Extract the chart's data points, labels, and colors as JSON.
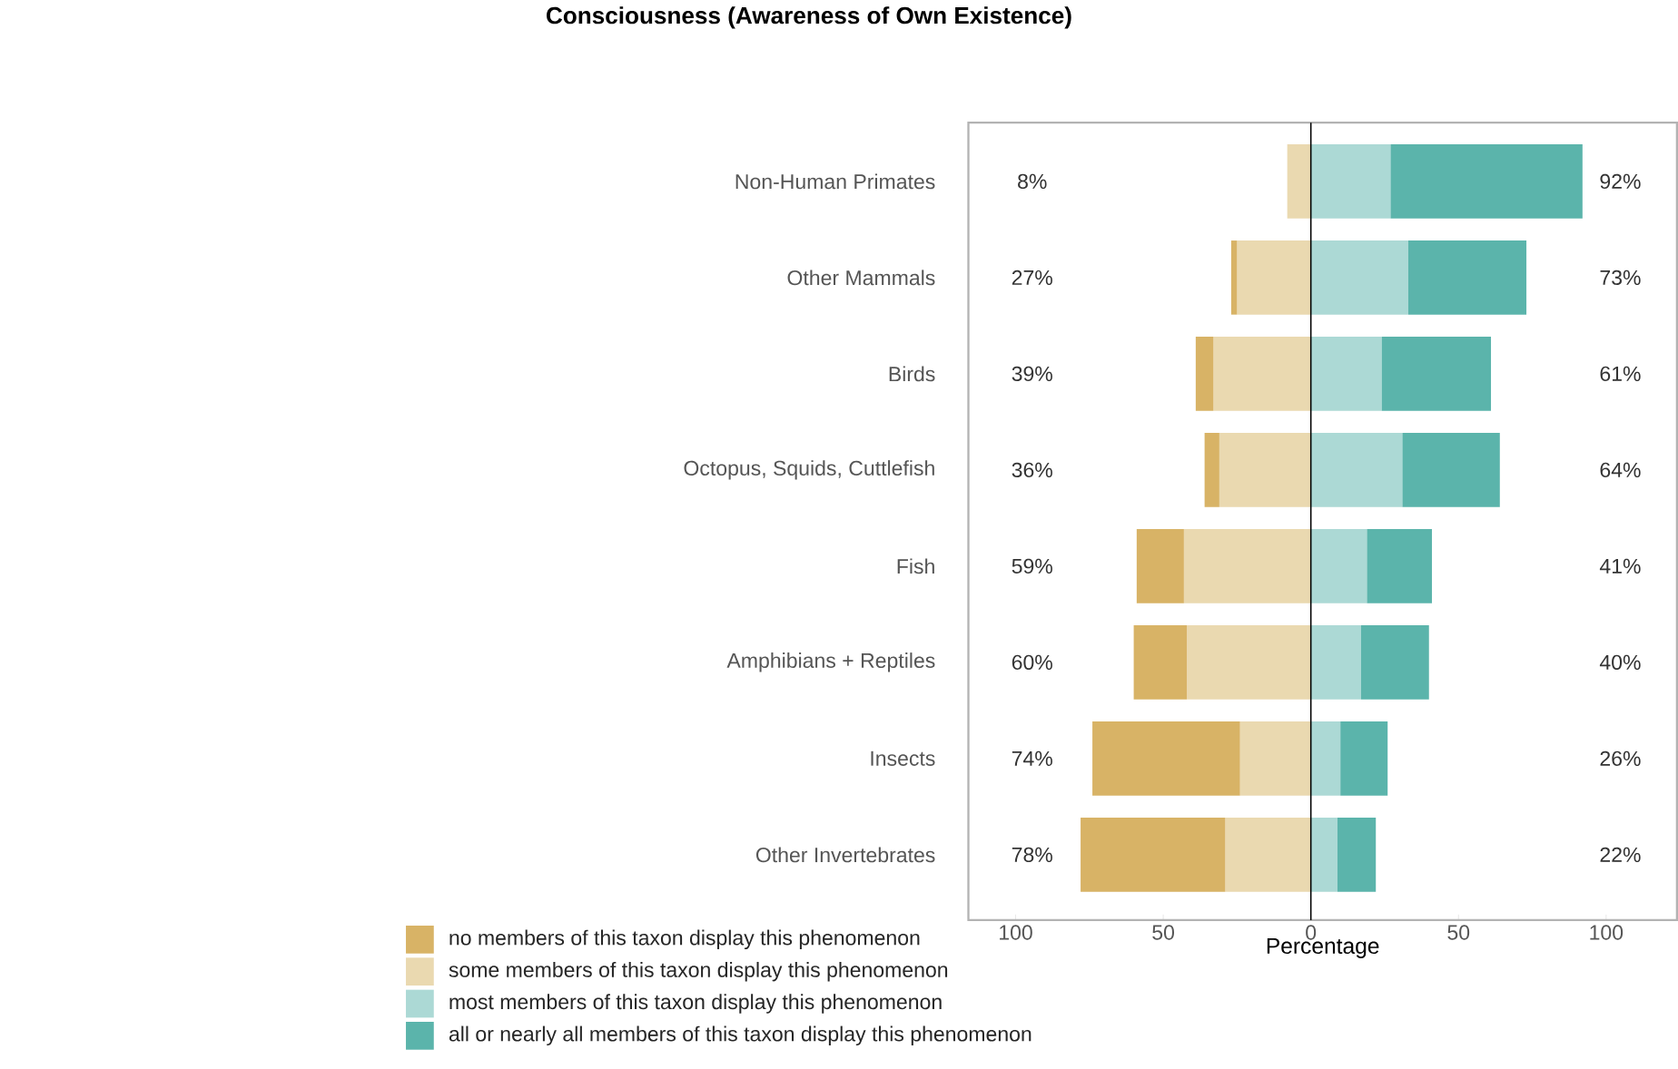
{
  "chart_data": {
    "type": "bar",
    "orientation": "horizontal",
    "stacked": true,
    "title": "Consciousness (Awareness of Own Existence)",
    "xlabel": "Percentage",
    "categories": [
      "Non-Human Primates",
      "Other Mammals",
      "Birds",
      "Octopus, Squids, Cuttlefish",
      "Fish",
      "Amphibians + Reptiles",
      "Insects",
      "Other Invertebrates"
    ],
    "series": [
      {
        "name": "some members of this taxon display this phenomenon",
        "color": "#ead9b0",
        "values": [
          -8,
          -25,
          -33,
          -31,
          -43,
          -42,
          -24,
          -29
        ]
      },
      {
        "name": "no members of this taxon display this phenomenon",
        "color": "#d8b366",
        "values": [
          0,
          -2,
          -6,
          -5,
          -16,
          -18,
          -50,
          -49
        ]
      },
      {
        "name": "most members of this taxon display this phenomenon",
        "color": "#acd9d5",
        "values": [
          27,
          33,
          24,
          31,
          19,
          17,
          10,
          9
        ]
      },
      {
        "name": "all or nearly all members of this taxon display this phenomenon",
        "color": "#5bb4ab",
        "values": [
          65,
          40,
          37,
          33,
          22,
          23,
          16,
          13
        ]
      }
    ],
    "totals": [
      [
        "8%",
        "92%"
      ],
      [
        "27%",
        "73%"
      ],
      [
        "39%",
        "61%"
      ],
      [
        "36%",
        "64%"
      ],
      [
        "59%",
        "41%"
      ],
      [
        "60%",
        "40%"
      ],
      [
        "74%",
        "26%"
      ],
      [
        "78%",
        "22%"
      ]
    ],
    "xlim": [
      -116,
      124
    ],
    "xticks": [
      {
        "value": -100,
        "label": "100"
      },
      {
        "value": -50,
        "label": "50"
      },
      0,
      50,
      100
    ],
    "ref_lines": [
      {
        "axis": "x",
        "value": 0,
        "color": "#000000"
      }
    ],
    "legend": "bottom",
    "grid": false
  }
}
